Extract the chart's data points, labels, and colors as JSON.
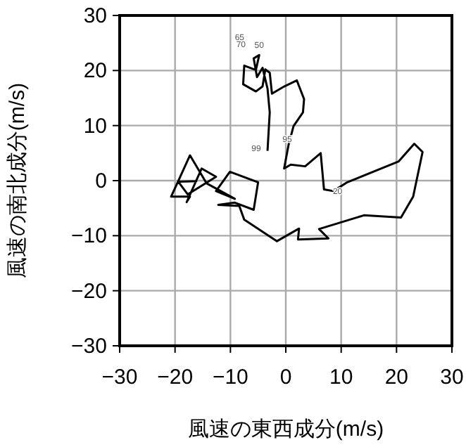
{
  "chart_data": {
    "type": "line",
    "xlabel": "風速の東西成分(m/s)",
    "ylabel": "風速の南北成分(m/s)",
    "xlim": [
      -30,
      30
    ],
    "ylim": [
      -30,
      30
    ],
    "xticks": [
      {
        "value": -30,
        "label": "−30"
      },
      {
        "value": -20,
        "label": "−20"
      },
      {
        "value": -10,
        "label": "−10"
      },
      0,
      10,
      20,
      30
    ],
    "yticks": [
      {
        "value": -30,
        "label": "−30"
      },
      {
        "value": -20,
        "label": "−20"
      },
      {
        "value": -10,
        "label": "−10"
      },
      0,
      10,
      20,
      30
    ],
    "grid": true,
    "color": "#000000",
    "x": [
      -3.3,
      -2.9,
      -3.3,
      -4.2,
      -5.2,
      -5.8,
      -4.8,
      -5.4,
      -7.5,
      -7.7,
      -5.4,
      -4.2,
      -3.7,
      -2.9,
      -2.5,
      -0.3,
      2.0,
      3.3,
      3.1,
      1.4,
      0.5,
      -0.3,
      0.9,
      3.5,
      6.3,
      6.9,
      8.6,
      11.1,
      20.4,
      23.2,
      24.7,
      23.0,
      20.8,
      14.1,
      6.0,
      7.7,
      2.2,
      2.4,
      -1.6,
      -7.5,
      -8.4,
      -12.2,
      -9.2,
      -5.8,
      -5.0,
      -10.1,
      -12.6,
      -9.2,
      -14.3,
      -17.3,
      -20.7,
      -17.3,
      -17.9,
      -15.2,
      -12.6,
      -17.7,
      -19.4,
      -16.0
    ],
    "values": [
      5.4,
      12.4,
      16.7,
      20.5,
      18.8,
      22.2,
      22.8,
      20.1,
      20.9,
      17.5,
      16.2,
      17.1,
      20.2,
      19.6,
      15.8,
      17.1,
      18.2,
      14.8,
      12.4,
      9.9,
      6.5,
      2.2,
      2.9,
      2.6,
      5.0,
      -1.6,
      -1.9,
      -0.3,
      3.5,
      6.7,
      5.2,
      -2.9,
      -6.7,
      -6.3,
      -8.8,
      -10.5,
      -10.7,
      -8.7,
      -11.0,
      -7.1,
      -4.6,
      -4.4,
      -4.0,
      -5.3,
      -0.3,
      1.6,
      -1.9,
      -3.3,
      -0.5,
      4.6,
      -2.9,
      -2.9,
      -3.9,
      2.2,
      0.7,
      -2.5,
      -0.2,
      -0.1
    ],
    "annotations": [
      {
        "text": "65",
        "x": -5.8,
        "y": 22.2
      },
      {
        "text": "70",
        "x": -5.8,
        "y": 22.2
      },
      {
        "text": "50",
        "x": -4.8,
        "y": 22.8
      },
      {
        "text": "99",
        "x": -3.3,
        "y": 5.4
      },
      {
        "text": "95",
        "x": 0.5,
        "y": 6.5
      },
      {
        "text": "20",
        "x": 8.6,
        "y": -1.9
      }
    ]
  }
}
